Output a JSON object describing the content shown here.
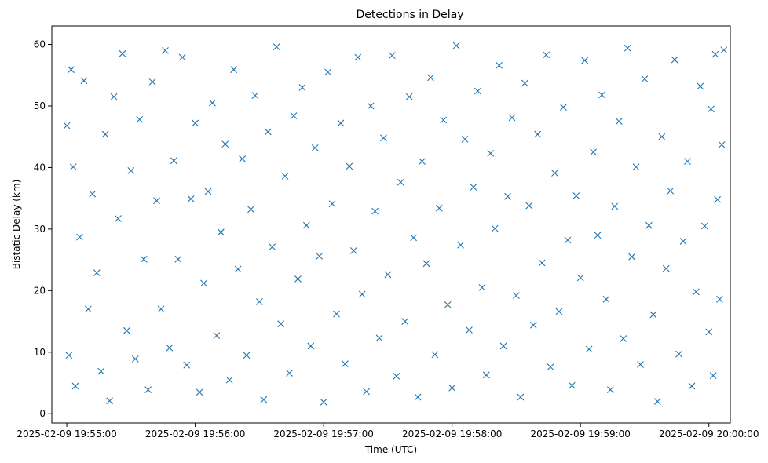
{
  "chart_data": {
    "type": "scatter",
    "title": "Detections in Delay",
    "xlabel": "Time (UTC)",
    "ylabel": "Bistatic Delay (km)",
    "x_unit": "time",
    "xlim": [
      "2025-02-09 19:54:53",
      "2025-02-09 20:00:10"
    ],
    "ylim": [
      -1.5,
      63
    ],
    "xticks": [
      {
        "label": "2025-02-09 19:55:00",
        "value": "2025-02-09 19:55:00"
      },
      {
        "label": "2025-02-09 19:56:00",
        "value": "2025-02-09 19:56:00"
      },
      {
        "label": "2025-02-09 19:57:00",
        "value": "2025-02-09 19:57:00"
      },
      {
        "label": "2025-02-09 19:58:00",
        "value": "2025-02-09 19:58:00"
      },
      {
        "label": "2025-02-09 19:59:00",
        "value": "2025-02-09 19:59:00"
      },
      {
        "label": "2025-02-09 20:00:00",
        "value": "2025-02-09 20:00:00"
      }
    ],
    "yticks": [
      0,
      10,
      20,
      30,
      40,
      50,
      60
    ],
    "grid": false,
    "marker": "x",
    "color": "#1f77b4",
    "series": [
      {
        "points": [
          [
            "2025-02-09 19:55:00",
            46.8
          ],
          [
            "2025-02-09 19:55:01",
            9.5
          ],
          [
            "2025-02-09 19:55:02",
            55.9
          ],
          [
            "2025-02-09 19:55:03",
            40.1
          ],
          [
            "2025-02-09 19:55:04",
            4.5
          ],
          [
            "2025-02-09 19:55:06",
            28.7
          ],
          [
            "2025-02-09 19:55:08",
            54.1
          ],
          [
            "2025-02-09 19:55:10",
            17.0
          ],
          [
            "2025-02-09 19:55:12",
            35.7
          ],
          [
            "2025-02-09 19:55:14",
            22.9
          ],
          [
            "2025-02-09 19:55:16",
            6.9
          ],
          [
            "2025-02-09 19:55:18",
            45.4
          ],
          [
            "2025-02-09 19:55:20",
            2.1
          ],
          [
            "2025-02-09 19:55:22",
            51.5
          ],
          [
            "2025-02-09 19:55:24",
            31.7
          ],
          [
            "2025-02-09 19:55:26",
            58.5
          ],
          [
            "2025-02-09 19:55:28",
            13.5
          ],
          [
            "2025-02-09 19:55:30",
            39.5
          ],
          [
            "2025-02-09 19:55:32",
            8.9
          ],
          [
            "2025-02-09 19:55:34",
            47.8
          ],
          [
            "2025-02-09 19:55:36",
            25.1
          ],
          [
            "2025-02-09 19:55:38",
            3.9
          ],
          [
            "2025-02-09 19:55:40",
            53.9
          ],
          [
            "2025-02-09 19:55:42",
            34.6
          ],
          [
            "2025-02-09 19:55:44",
            17.0
          ],
          [
            "2025-02-09 19:55:46",
            59.0
          ],
          [
            "2025-02-09 19:55:48",
            10.7
          ],
          [
            "2025-02-09 19:55:50",
            41.1
          ],
          [
            "2025-02-09 19:55:52",
            25.1
          ],
          [
            "2025-02-09 19:55:54",
            57.9
          ],
          [
            "2025-02-09 19:55:56",
            7.9
          ],
          [
            "2025-02-09 19:55:58",
            34.9
          ],
          [
            "2025-02-09 19:56:00",
            47.2
          ],
          [
            "2025-02-09 19:56:02",
            3.5
          ],
          [
            "2025-02-09 19:56:04",
            21.2
          ],
          [
            "2025-02-09 19:56:06",
            36.1
          ],
          [
            "2025-02-09 19:56:08",
            50.5
          ],
          [
            "2025-02-09 19:56:10",
            12.7
          ],
          [
            "2025-02-09 19:56:12",
            29.5
          ],
          [
            "2025-02-09 19:56:14",
            43.8
          ],
          [
            "2025-02-09 19:56:16",
            5.5
          ],
          [
            "2025-02-09 19:56:18",
            55.9
          ],
          [
            "2025-02-09 19:56:20",
            23.5
          ],
          [
            "2025-02-09 19:56:22",
            41.4
          ],
          [
            "2025-02-09 19:56:24",
            9.5
          ],
          [
            "2025-02-09 19:56:26",
            33.2
          ],
          [
            "2025-02-09 19:56:28",
            51.7
          ],
          [
            "2025-02-09 19:56:30",
            18.2
          ],
          [
            "2025-02-09 19:56:32",
            2.3
          ],
          [
            "2025-02-09 19:56:34",
            45.8
          ],
          [
            "2025-02-09 19:56:36",
            27.1
          ],
          [
            "2025-02-09 19:56:38",
            59.6
          ],
          [
            "2025-02-09 19:56:40",
            14.6
          ],
          [
            "2025-02-09 19:56:42",
            38.6
          ],
          [
            "2025-02-09 19:56:44",
            6.6
          ],
          [
            "2025-02-09 19:56:46",
            48.4
          ],
          [
            "2025-02-09 19:56:48",
            21.9
          ],
          [
            "2025-02-09 19:56:50",
            53.0
          ],
          [
            "2025-02-09 19:56:52",
            30.6
          ],
          [
            "2025-02-09 19:56:54",
            11.0
          ],
          [
            "2025-02-09 19:56:56",
            43.2
          ],
          [
            "2025-02-09 19:56:58",
            25.6
          ],
          [
            "2025-02-09 19:57:00",
            1.9
          ],
          [
            "2025-02-09 19:57:02",
            55.5
          ],
          [
            "2025-02-09 19:57:04",
            34.1
          ],
          [
            "2025-02-09 19:57:06",
            16.2
          ],
          [
            "2025-02-09 19:57:08",
            47.2
          ],
          [
            "2025-02-09 19:57:10",
            8.1
          ],
          [
            "2025-02-09 19:57:12",
            40.2
          ],
          [
            "2025-02-09 19:57:14",
            26.5
          ],
          [
            "2025-02-09 19:57:16",
            57.9
          ],
          [
            "2025-02-09 19:57:18",
            19.4
          ],
          [
            "2025-02-09 19:57:20",
            3.6
          ],
          [
            "2025-02-09 19:57:22",
            50.0
          ],
          [
            "2025-02-09 19:57:24",
            32.9
          ],
          [
            "2025-02-09 19:57:26",
            12.3
          ],
          [
            "2025-02-09 19:57:28",
            44.8
          ],
          [
            "2025-02-09 19:57:30",
            22.6
          ],
          [
            "2025-02-09 19:57:32",
            58.2
          ],
          [
            "2025-02-09 19:57:34",
            6.1
          ],
          [
            "2025-02-09 19:57:36",
            37.6
          ],
          [
            "2025-02-09 19:57:38",
            15.0
          ],
          [
            "2025-02-09 19:57:40",
            51.5
          ],
          [
            "2025-02-09 19:57:42",
            28.6
          ],
          [
            "2025-02-09 19:57:44",
            2.7
          ],
          [
            "2025-02-09 19:57:46",
            41.0
          ],
          [
            "2025-02-09 19:57:48",
            24.4
          ],
          [
            "2025-02-09 19:57:50",
            54.6
          ],
          [
            "2025-02-09 19:57:52",
            9.6
          ],
          [
            "2025-02-09 19:57:54",
            33.4
          ],
          [
            "2025-02-09 19:57:56",
            47.7
          ],
          [
            "2025-02-09 19:57:58",
            17.7
          ],
          [
            "2025-02-09 19:58:00",
            4.2
          ],
          [
            "2025-02-09 19:58:02",
            59.8
          ],
          [
            "2025-02-09 19:58:04",
            27.4
          ],
          [
            "2025-02-09 19:58:06",
            44.6
          ],
          [
            "2025-02-09 19:58:08",
            13.6
          ],
          [
            "2025-02-09 19:58:10",
            36.8
          ],
          [
            "2025-02-09 19:58:12",
            52.4
          ],
          [
            "2025-02-09 19:58:14",
            20.5
          ],
          [
            "2025-02-09 19:58:16",
            6.3
          ],
          [
            "2025-02-09 19:58:18",
            42.3
          ],
          [
            "2025-02-09 19:58:20",
            30.1
          ],
          [
            "2025-02-09 19:58:22",
            56.6
          ],
          [
            "2025-02-09 19:58:24",
            11.0
          ],
          [
            "2025-02-09 19:58:26",
            35.3
          ],
          [
            "2025-02-09 19:58:28",
            48.1
          ],
          [
            "2025-02-09 19:58:30",
            19.2
          ],
          [
            "2025-02-09 19:58:32",
            2.7
          ],
          [
            "2025-02-09 19:58:34",
            53.7
          ],
          [
            "2025-02-09 19:58:36",
            33.8
          ],
          [
            "2025-02-09 19:58:38",
            14.4
          ],
          [
            "2025-02-09 19:58:40",
            45.4
          ],
          [
            "2025-02-09 19:58:42",
            24.5
          ],
          [
            "2025-02-09 19:58:44",
            58.3
          ],
          [
            "2025-02-09 19:58:46",
            7.6
          ],
          [
            "2025-02-09 19:58:48",
            39.1
          ],
          [
            "2025-02-09 19:58:50",
            16.6
          ],
          [
            "2025-02-09 19:58:52",
            49.8
          ],
          [
            "2025-02-09 19:58:54",
            28.2
          ],
          [
            "2025-02-09 19:58:56",
            4.6
          ],
          [
            "2025-02-09 19:58:58",
            35.4
          ],
          [
            "2025-02-09 19:59:00",
            22.1
          ],
          [
            "2025-02-09 19:59:02",
            57.4
          ],
          [
            "2025-02-09 19:59:04",
            10.5
          ],
          [
            "2025-02-09 19:59:06",
            42.5
          ],
          [
            "2025-02-09 19:59:08",
            29.0
          ],
          [
            "2025-02-09 19:59:10",
            51.8
          ],
          [
            "2025-02-09 19:59:12",
            18.6
          ],
          [
            "2025-02-09 19:59:14",
            3.9
          ],
          [
            "2025-02-09 19:59:16",
            33.7
          ],
          [
            "2025-02-09 19:59:18",
            47.5
          ],
          [
            "2025-02-09 19:59:20",
            12.2
          ],
          [
            "2025-02-09 19:59:22",
            59.4
          ],
          [
            "2025-02-09 19:59:24",
            25.5
          ],
          [
            "2025-02-09 19:59:26",
            40.1
          ],
          [
            "2025-02-09 19:59:28",
            8.0
          ],
          [
            "2025-02-09 19:59:30",
            54.4
          ],
          [
            "2025-02-09 19:59:32",
            30.6
          ],
          [
            "2025-02-09 19:59:34",
            16.1
          ],
          [
            "2025-02-09 19:59:36",
            2.0
          ],
          [
            "2025-02-09 19:59:38",
            45.0
          ],
          [
            "2025-02-09 19:59:40",
            23.6
          ],
          [
            "2025-02-09 19:59:42",
            36.2
          ],
          [
            "2025-02-09 19:59:44",
            57.5
          ],
          [
            "2025-02-09 19:59:46",
            9.7
          ],
          [
            "2025-02-09 19:59:48",
            28.0
          ],
          [
            "2025-02-09 19:59:50",
            41.0
          ],
          [
            "2025-02-09 19:59:52",
            4.5
          ],
          [
            "2025-02-09 19:59:54",
            19.8
          ],
          [
            "2025-02-09 19:59:56",
            53.2
          ],
          [
            "2025-02-09 19:59:58",
            30.5
          ],
          [
            "2025-02-09 20:00:00",
            13.3
          ],
          [
            "2025-02-09 20:00:01",
            49.5
          ],
          [
            "2025-02-09 20:00:02",
            6.2
          ],
          [
            "2025-02-09 20:00:03",
            58.4
          ],
          [
            "2025-02-09 20:00:04",
            34.8
          ],
          [
            "2025-02-09 20:00:05",
            18.6
          ],
          [
            "2025-02-09 20:00:06",
            43.7
          ],
          [
            "2025-02-09 20:00:07",
            59.1
          ]
        ]
      }
    ]
  }
}
